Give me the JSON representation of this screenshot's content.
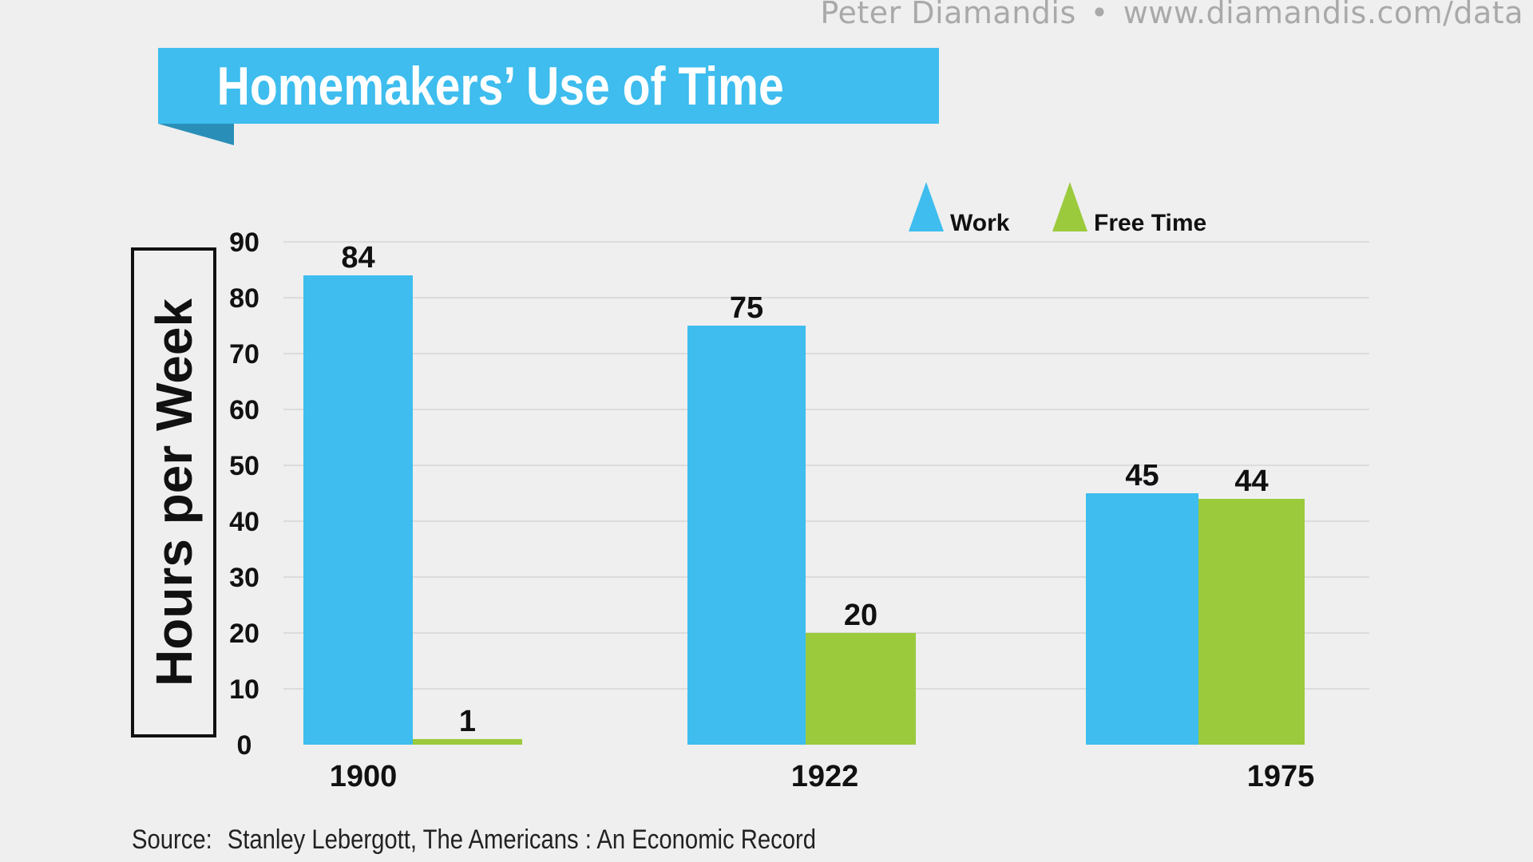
{
  "credit": {
    "author": "Peter Diamandis",
    "separator": "•",
    "url": "www.diamandis.com/data"
  },
  "source": {
    "label": "Source:",
    "text": "Stanley Lebergott, The Americans : An Economic Record"
  },
  "colors": {
    "work": "#3ebdee",
    "free_time": "#9bca3c",
    "banner": "#3ebdee",
    "banner_fold": "#2a8fb8",
    "background": "#efefef",
    "grid": "#d6d6d6"
  },
  "chart_data": {
    "type": "bar",
    "title": "Homemakers’ Use of Time",
    "ylabel": "Hours per Week",
    "xlabel": "",
    "categories": [
      "1900",
      "1922",
      "1975"
    ],
    "series": [
      {
        "name": "Work",
        "values": [
          84,
          75,
          45
        ],
        "labels": [
          "84",
          "75",
          "45"
        ]
      },
      {
        "name": "Free Time",
        "values": [
          1,
          20,
          44
        ],
        "labels": [
          "1",
          "20",
          "44"
        ]
      }
    ],
    "ylim": [
      0,
      90
    ],
    "yticks": [
      "0",
      "10",
      "20",
      "30",
      "40",
      "50",
      "60",
      "70",
      "80",
      "90"
    ],
    "grid": true,
    "legend_position": "top-right",
    "legend_marker": "triangle"
  }
}
